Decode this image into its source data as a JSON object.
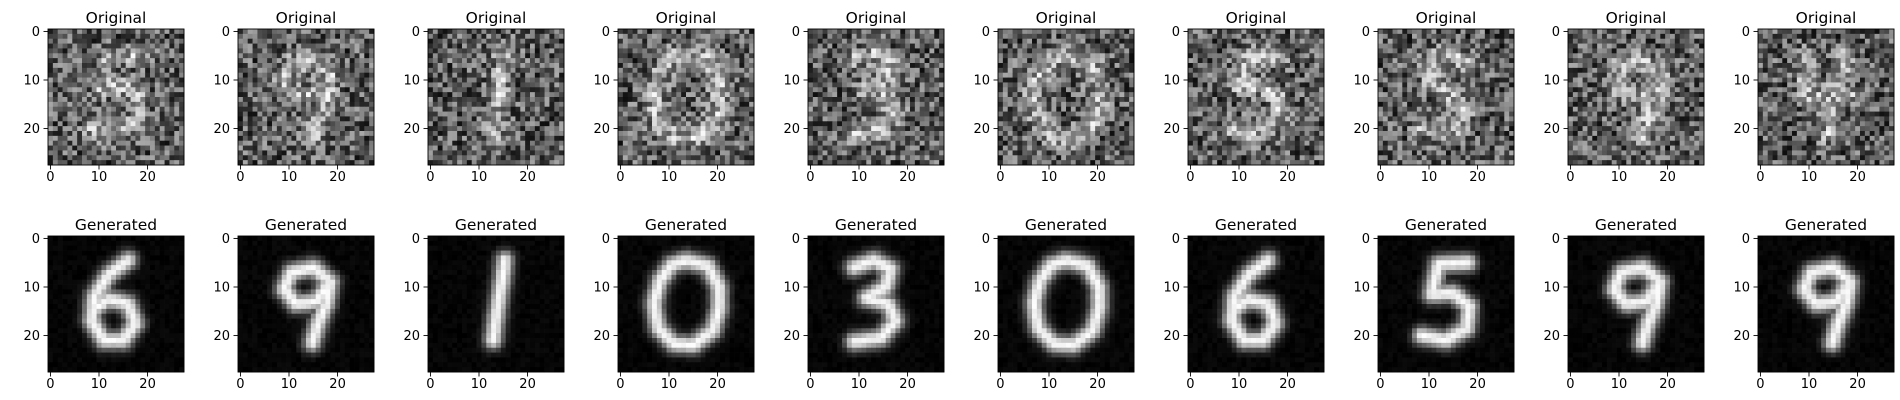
{
  "chart_data": {
    "type": "image-grid",
    "rows": [
      {
        "row_title": "Original",
        "panels": [
          {
            "digit_shape": "5",
            "variant": "noisy"
          },
          {
            "digit_shape": "9",
            "variant": "noisy"
          },
          {
            "digit_shape": "1",
            "variant": "noisy"
          },
          {
            "digit_shape": "0",
            "variant": "noisy"
          },
          {
            "digit_shape": "3",
            "variant": "noisy"
          },
          {
            "digit_shape": "0",
            "variant": "noisy"
          },
          {
            "digit_shape": "5",
            "variant": "noisy"
          },
          {
            "digit_shape": "S",
            "variant": "noisy"
          },
          {
            "digit_shape": "9",
            "variant": "noisy"
          },
          {
            "digit_shape": "4",
            "variant": "noisy"
          }
        ]
      },
      {
        "row_title": "Generated",
        "panels": [
          {
            "digit_shape": "6",
            "variant": "clean"
          },
          {
            "digit_shape": "9",
            "variant": "clean"
          },
          {
            "digit_shape": "1",
            "variant": "clean"
          },
          {
            "digit_shape": "0",
            "variant": "clean"
          },
          {
            "digit_shape": "3",
            "variant": "clean"
          },
          {
            "digit_shape": "0",
            "variant": "clean"
          },
          {
            "digit_shape": "6",
            "variant": "clean"
          },
          {
            "digit_shape": "5",
            "variant": "clean"
          },
          {
            "digit_shape": "9",
            "variant": "clean"
          },
          {
            "digit_shape": "9",
            "variant": "clean"
          }
        ]
      }
    ],
    "image_size": [
      28,
      28
    ],
    "x_ticks": [
      "0",
      "10",
      "20"
    ],
    "y_ticks": [
      "0",
      "10",
      "20"
    ],
    "xlim": [
      -0.5,
      27.5
    ],
    "ylim": [
      27.5,
      -0.5
    ],
    "colormap": "gray",
    "grid": false
  }
}
